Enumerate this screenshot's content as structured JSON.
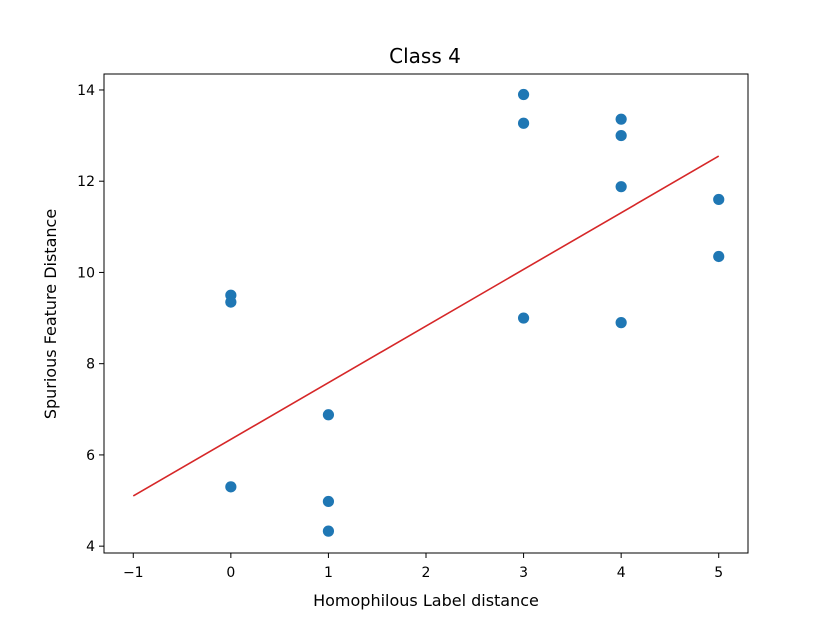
{
  "chart_data": {
    "type": "scatter",
    "title": "Class 4",
    "xlabel": "Homophilous Label distance",
    "ylabel": "Spurious Feature Distance",
    "xlim": [
      -1.3,
      5.3
    ],
    "ylim": [
      3.85,
      14.35
    ],
    "xticks": [
      -1,
      0,
      1,
      2,
      3,
      4,
      5
    ],
    "xtick_labels": [
      "−1",
      "0",
      "1",
      "2",
      "3",
      "4",
      "5"
    ],
    "yticks": [
      4,
      6,
      8,
      10,
      12,
      14
    ],
    "ytick_labels": [
      "4",
      "6",
      "8",
      "10",
      "12",
      "14"
    ],
    "grid": false,
    "series": [
      {
        "type": "scatter",
        "color": "#1f77b4",
        "points": [
          {
            "x": 0,
            "y": 9.5
          },
          {
            "x": 0,
            "y": 9.35
          },
          {
            "x": 0,
            "y": 5.3
          },
          {
            "x": 1,
            "y": 6.88
          },
          {
            "x": 1,
            "y": 4.98
          },
          {
            "x": 1,
            "y": 4.33
          },
          {
            "x": 3,
            "y": 13.9
          },
          {
            "x": 3,
            "y": 13.27
          },
          {
            "x": 3,
            "y": 9.0
          },
          {
            "x": 4,
            "y": 13.36
          },
          {
            "x": 4,
            "y": 13.0
          },
          {
            "x": 4,
            "y": 11.88
          },
          {
            "x": 4,
            "y": 8.9
          },
          {
            "x": 5,
            "y": 11.6
          },
          {
            "x": 5,
            "y": 10.35
          }
        ]
      },
      {
        "type": "line",
        "color": "#d62728",
        "points": [
          {
            "x": -1,
            "y": 5.1
          },
          {
            "x": 5,
            "y": 12.55
          }
        ]
      }
    ]
  }
}
